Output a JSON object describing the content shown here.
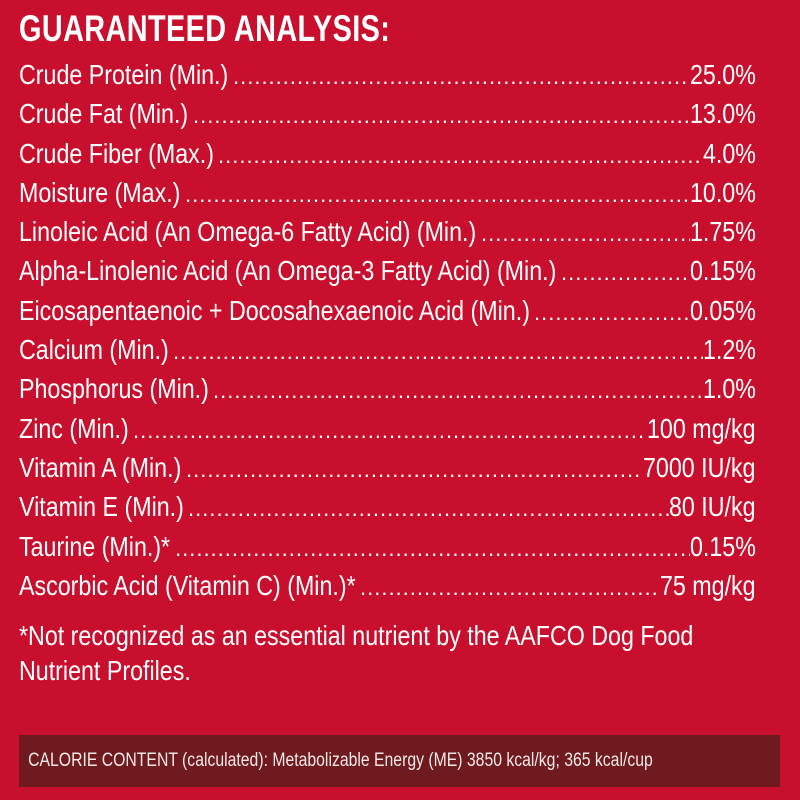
{
  "heading": "GUARANTEED ANALYSIS:",
  "rows": [
    {
      "label": "Crude Protein (Min.)",
      "value": "25.0%"
    },
    {
      "label": "Crude Fat (Min.)",
      "value": "13.0%"
    },
    {
      "label": "Crude Fiber (Max.)",
      "value": "4.0%"
    },
    {
      "label": "Moisture (Max.)",
      "value": "10.0%"
    },
    {
      "label": "Linoleic Acid (An Omega-6 Fatty Acid) (Min.)",
      "value": "1.75%"
    },
    {
      "label": "Alpha-Linolenic Acid (An Omega-3 Fatty Acid) (Min.)",
      "value": "0.15%"
    },
    {
      "label": "Eicosapentaenoic + Docosahexaenoic Acid (Min.)",
      "value": "0.05%"
    },
    {
      "label": "Calcium (Min.)",
      "value": "1.2%"
    },
    {
      "label": "Phosphorus (Min.)",
      "value": "1.0%"
    },
    {
      "label": "Zinc (Min.)",
      "value": "100 mg/kg"
    },
    {
      "label": "Vitamin A (Min.)",
      "value": "7000 IU/kg"
    },
    {
      "label": "Vitamin E (Min.)",
      "value": "80 IU/kg"
    },
    {
      "label": "Taurine (Min.)*",
      "value": "0.15%"
    },
    {
      "label": "Ascorbic Acid (Vitamin C) (Min.)*",
      "value": "75 mg/kg"
    }
  ],
  "footnote": {
    "line1": "*Not recognized as an essential nutrient by the AAFCO Dog Food",
    "line2": "Nutrient Profiles."
  },
  "calorie": "CALORIE CONTENT (calculated): Metabolizable Energy (ME) 3850 kcal/kg; 365 kcal/cup",
  "colors": {
    "background": "#c8102e",
    "calorie_bar": "#6e1a1e",
    "text": "#ffffff"
  }
}
